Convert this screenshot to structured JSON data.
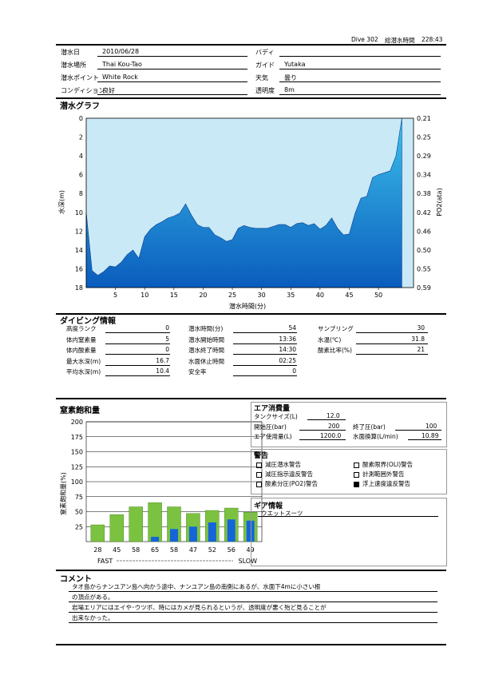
{
  "header": {
    "dive_no": "Dive 302",
    "total_time_label": "総潜水時間",
    "total_time": "228:43"
  },
  "info": {
    "left": [
      {
        "label": "潜水日",
        "value": "2010/06/28"
      },
      {
        "label": "潜水場所",
        "value": "Thai Kou-Tao"
      },
      {
        "label": "潜水ポイント",
        "value": "White Rock"
      },
      {
        "label": "コンディション",
        "value": "良好"
      }
    ],
    "right": [
      {
        "label": "バディ",
        "value": ""
      },
      {
        "label": "ガイド",
        "value": "Yutaka"
      },
      {
        "label": "天気",
        "value": "曇り"
      },
      {
        "label": "透明度",
        "value": "8m"
      }
    ]
  },
  "graph": {
    "title": "潜水グラフ",
    "ylabel_left": "水深(m)",
    "ylabel_right": "PO2(ata)",
    "xlabel": "潜水時間(分)",
    "colors": {
      "fill_bg": "#c9e9f6",
      "fill_top": "#3cc1ec",
      "fill_bottom": "#0a5cbd"
    }
  },
  "chart_data": [
    {
      "type": "area",
      "xlabel": "潜水時間(分)",
      "ylabel": "水深(m)",
      "y2label": "PO2(ata)",
      "xlim": [
        0,
        56
      ],
      "ylim": [
        18,
        0
      ],
      "xticks": [
        5,
        10,
        15,
        20,
        25,
        30,
        35,
        40,
        45,
        50
      ],
      "yticks": [
        0,
        2,
        4,
        6,
        8,
        10,
        12,
        14,
        16,
        18
      ],
      "y2ticks": [
        "0.21",
        "0.25",
        "0.29",
        "0.34",
        "0.38",
        "0.42",
        "0.46",
        "0.50",
        "0.55",
        "0.59"
      ],
      "series": [
        {
          "x": [
            0,
            1,
            2,
            3,
            4,
            5,
            6,
            7,
            8,
            9,
            10,
            11,
            12,
            13,
            14,
            15,
            16,
            17,
            18,
            19,
            20,
            21,
            22,
            23,
            24,
            25,
            26,
            27,
            28,
            29,
            30,
            31,
            32,
            33,
            34,
            35,
            36,
            37,
            38,
            39,
            40,
            41,
            42,
            43,
            44,
            45,
            46,
            47,
            48,
            49,
            50,
            51,
            52,
            53,
            54
          ],
          "y": [
            10,
            16.2,
            16.7,
            16.3,
            15.7,
            15.8,
            15.3,
            14.5,
            14.0,
            14.9,
            12.6,
            11.8,
            11.3,
            11.0,
            10.6,
            10.4,
            10.1,
            9.1,
            10.3,
            11.3,
            11.6,
            11.6,
            12.4,
            12.7,
            13.1,
            12.9,
            11.7,
            11.4,
            11.6,
            11.7,
            11.7,
            11.7,
            11.5,
            11.3,
            11.3,
            11.6,
            11.2,
            11.1,
            11.4,
            11.2,
            11.8,
            11.4,
            10.6,
            11.7,
            12.4,
            12.3,
            10.1,
            8.5,
            8.3,
            6.3,
            6.0,
            5.8,
            5.6,
            4.0,
            0
          ]
        }
      ]
    },
    {
      "type": "bar",
      "title": "窒素飽和量",
      "ylabel": "窒素飽和量(%)",
      "ylim": [
        0,
        200
      ],
      "yticks": [
        25,
        50,
        75,
        100,
        125,
        150,
        175,
        200
      ],
      "categories": [
        "28",
        "45",
        "58",
        "65",
        "58",
        "47",
        "52",
        "56",
        "49"
      ],
      "series": [
        {
          "values": [
            28,
            45,
            58,
            65,
            58,
            47,
            52,
            56,
            49
          ],
          "color": "#7cc241"
        },
        {
          "values": [
            0,
            0,
            0,
            8,
            21,
            25,
            32,
            37,
            35
          ],
          "color": "#1565d8"
        }
      ],
      "fast_label": "FAST",
      "slow_label": "SLOW"
    }
  ],
  "diving": {
    "title": "ダイビング情報",
    "col1": [
      {
        "label": "高度ランク",
        "value": "0"
      },
      {
        "label": "体内窒素量",
        "value": "5"
      },
      {
        "label": "体内酸素量",
        "value": "0"
      },
      {
        "label": "最大水深(m)",
        "value": "16.7"
      },
      {
        "label": "平均水深(m)",
        "value": "10.4"
      }
    ],
    "col2": [
      {
        "label": "潜水時間(分)",
        "value": "54"
      },
      {
        "label": "潜水開始時間",
        "value": "13:36"
      },
      {
        "label": "潜水終了時間",
        "value": "14:30"
      },
      {
        "label": "水面休止時間",
        "value": "02:25"
      },
      {
        "label": "安全率",
        "value": "0"
      }
    ],
    "col3": [
      {
        "label": "サンプリング",
        "value": "30"
      },
      {
        "label": "水温(℃)",
        "value": "31.8"
      },
      {
        "label": "酸素比率(%)",
        "value": "21"
      }
    ]
  },
  "nitrogen": {
    "title": "窒素飽和量",
    "ylabel": "窒素飽和量(%)"
  },
  "air": {
    "title": "エア消費量",
    "tank_label": "タンクサイズ(L)",
    "tank": "12.0",
    "start_label": "開始圧(bar)",
    "start": "200",
    "end_label": "終了圧(bar)",
    "end": "100",
    "used_label": "エア使用量(L)",
    "used": "1200.0",
    "surface_label": "水面換算(L/min)",
    "surface": "10.89"
  },
  "warnings": {
    "title": "警告",
    "items": [
      {
        "label": "減圧潜水警告",
        "checked": false
      },
      {
        "label": "酸素限界(OLI)警告",
        "checked": false
      },
      {
        "label": "減圧指示違反警告",
        "checked": false
      },
      {
        "label": "計測範囲外警告",
        "checked": false
      },
      {
        "label": "酸素分圧(PO2)警告",
        "checked": false
      },
      {
        "label": "浮上速度違反警告",
        "checked": true
      }
    ]
  },
  "gear": {
    "title": "ギア情報",
    "value": "ウエットスーツ"
  },
  "comment": {
    "title": "コメント",
    "lines": [
      "タオ島からナンユアン島へ向かう途中、ナンユアン島の南側にあるが、水面下4mに小さい根",
      "の頂点がある。",
      "岩場エリアにはエイや･ウツボ、時にはカメが見られるというが、透明度が悪く殆ど見ることが",
      "出来なかった。"
    ]
  }
}
